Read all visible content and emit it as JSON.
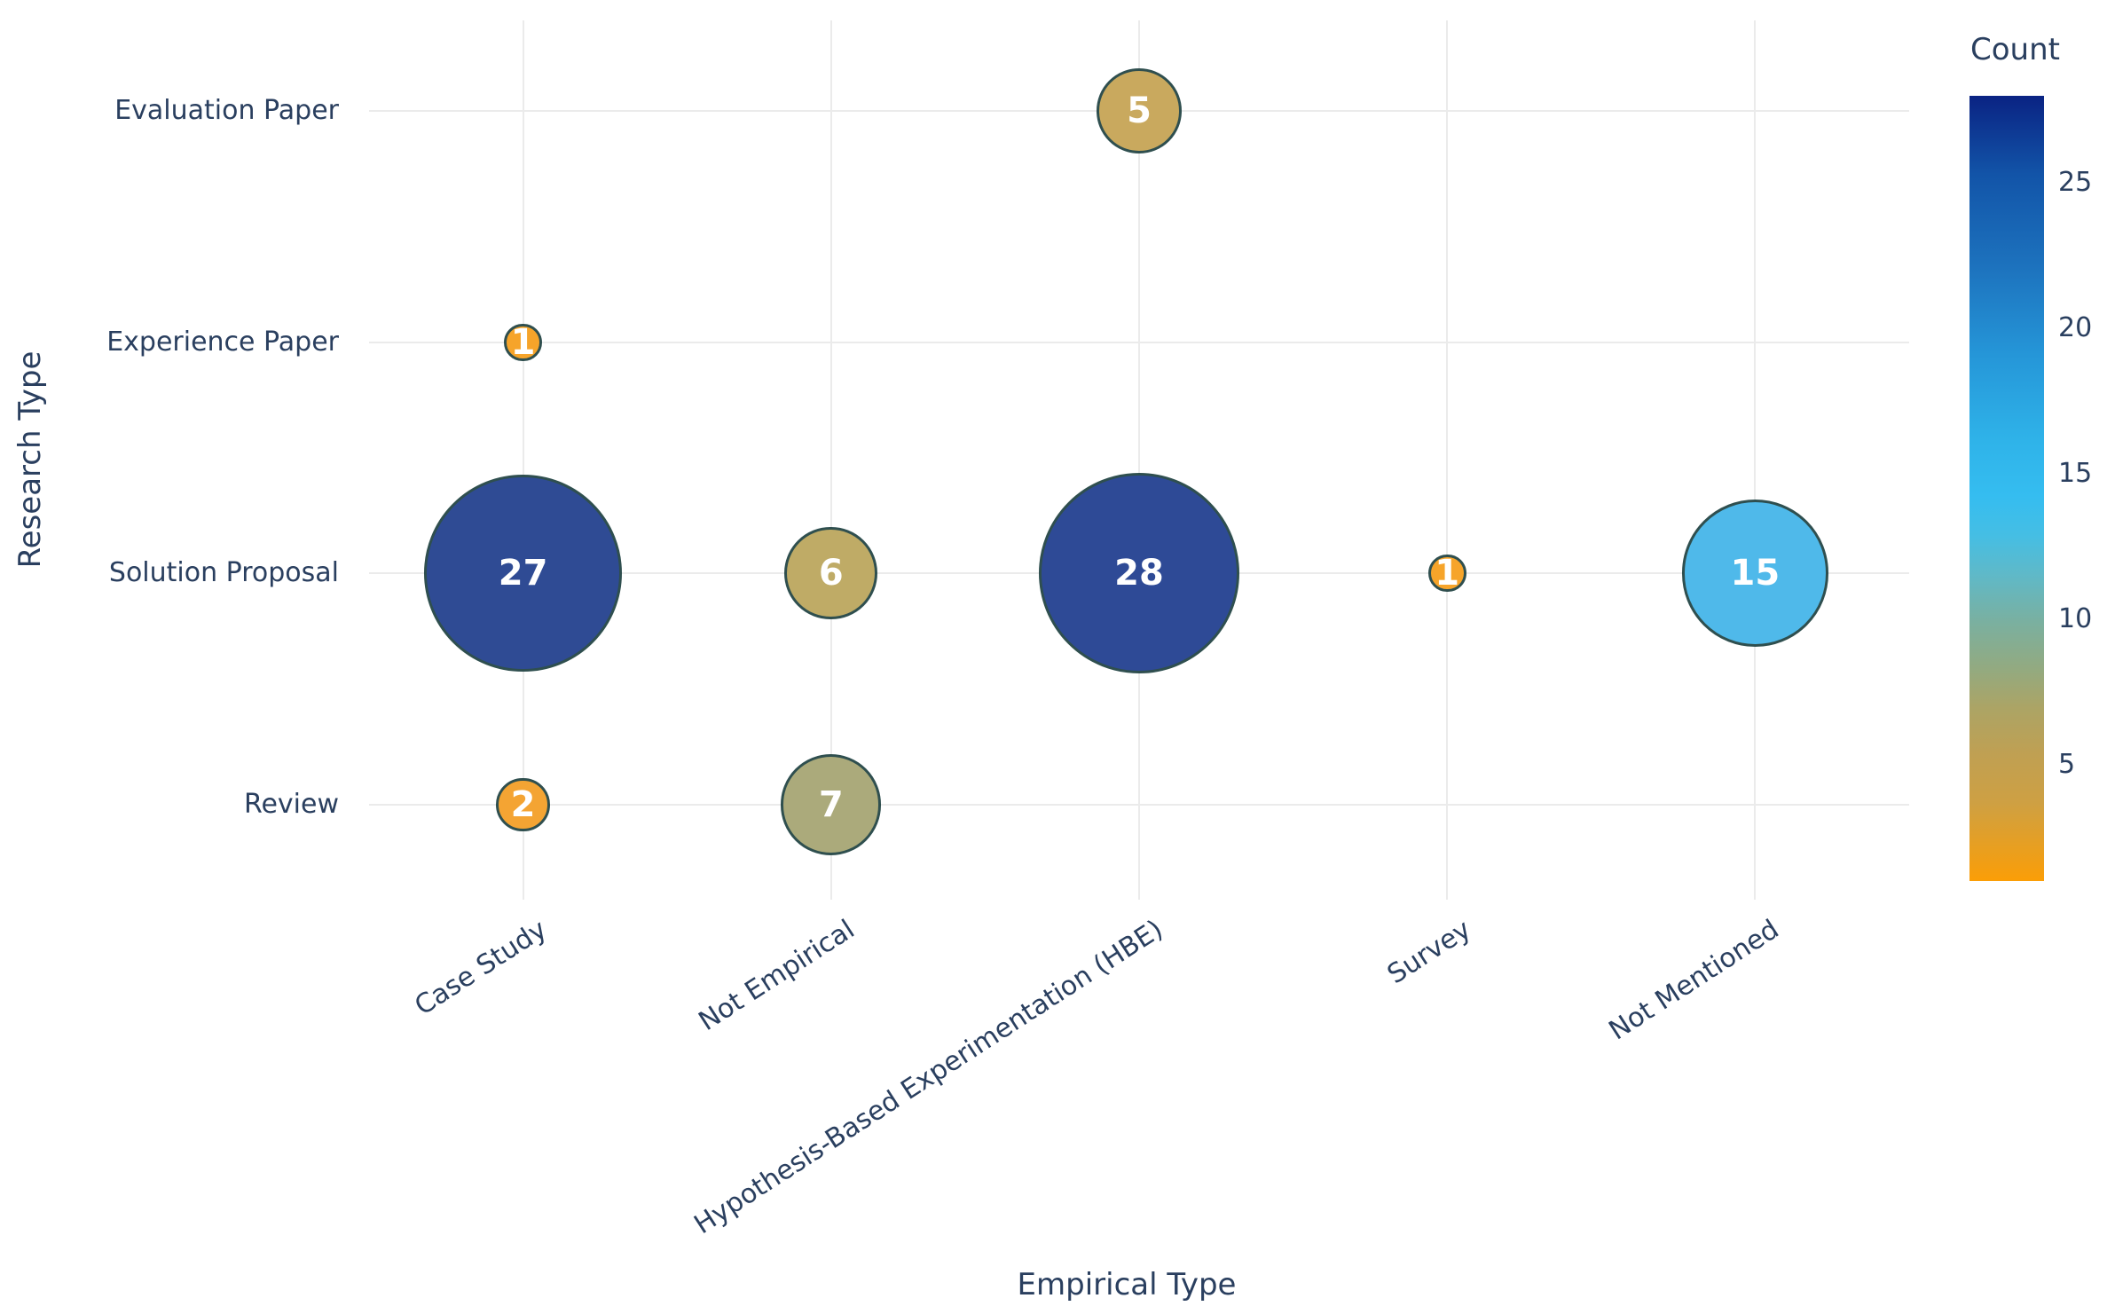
{
  "chart_data": {
    "type": "scatter",
    "subtype": "bubble",
    "title": "",
    "xlabel": "Empirical Type",
    "ylabel": "Research Type",
    "x_categories": [
      "Case Study",
      "Not Empirical",
      "Hypothesis-Based Experimentation (HBE)",
      "Survey",
      "Not Mentioned"
    ],
    "y_categories": [
      "Evaluation Paper",
      "Experience Paper",
      "Solution Proposal",
      "Review"
    ],
    "points": [
      {
        "x": "Case Study",
        "y": "Solution Proposal",
        "count": 27,
        "color": "#2f4b94"
      },
      {
        "x": "Case Study",
        "y": "Experience Paper",
        "count": 1,
        "color": "#f6a42a"
      },
      {
        "x": "Case Study",
        "y": "Review",
        "count": 2,
        "color": "#f4a433"
      },
      {
        "x": "Not Empirical",
        "y": "Solution Proposal",
        "count": 6,
        "color": "#bfab66"
      },
      {
        "x": "Not Empirical",
        "y": "Review",
        "count": 7,
        "color": "#abaa7b"
      },
      {
        "x": "Hypothesis-Based Experimentation (HBE)",
        "y": "Evaluation Paper",
        "count": 5,
        "color": "#c9a95e"
      },
      {
        "x": "Hypothesis-Based Experimentation (HBE)",
        "y": "Solution Proposal",
        "count": 28,
        "color": "#2e4a96"
      },
      {
        "x": "Survey",
        "y": "Solution Proposal",
        "count": 1,
        "color": "#f6a42a"
      },
      {
        "x": "Not Mentioned",
        "y": "Solution Proposal",
        "count": 15,
        "color": "#4fb9ea"
      }
    ],
    "colorbar": {
      "title": "Count",
      "tick_values": [
        25,
        20,
        15,
        10,
        5
      ],
      "value_range": [
        1,
        28
      ],
      "gradient_top_to_bottom": [
        {
          "pos": 0,
          "color": "#0a2383"
        },
        {
          "pos": 10,
          "color": "#1254a8"
        },
        {
          "pos": 22,
          "color": "#1d73be"
        },
        {
          "pos": 33,
          "color": "#2596d8"
        },
        {
          "pos": 44,
          "color": "#2fb3e9"
        },
        {
          "pos": 51,
          "color": "#35bdf0"
        },
        {
          "pos": 56,
          "color": "#45bee4"
        },
        {
          "pos": 61,
          "color": "#5fb9c8"
        },
        {
          "pos": 67,
          "color": "#7ab0a0"
        },
        {
          "pos": 73,
          "color": "#93aa80"
        },
        {
          "pos": 78,
          "color": "#aca465"
        },
        {
          "pos": 84,
          "color": "#c0a052"
        },
        {
          "pos": 90,
          "color": "#cea043"
        },
        {
          "pos": 100,
          "color": "#fb9e07"
        }
      ]
    },
    "style": {
      "marker_outline_color": "#2f4f4f",
      "bubble_text_color": "#ffffff",
      "axis_text_color": "#2a3f5f",
      "grid_color": "#ebebeb",
      "background": "#ffffff"
    },
    "layout_hints": {
      "grid": "on",
      "legend_position": "right-colorbar",
      "x_tick_rotation_deg": 33,
      "size_encoding": "area proportional to count"
    }
  }
}
